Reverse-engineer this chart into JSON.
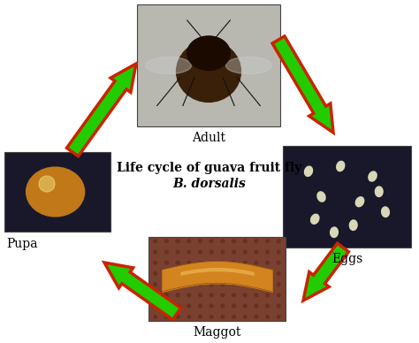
{
  "title_line1": "Life cycle of guava fruit fly",
  "title_line2": "B. dorsalis",
  "background_color": "#ffffff",
  "labels": {
    "adult": "Adult",
    "eggs": "Eggs",
    "maggot": "Maggot",
    "pupa": "Pupa"
  },
  "photo_colors": {
    "adult": "#b8b8b0",
    "eggs": "#18182a",
    "maggot": "#7a4030",
    "pupa": "#18182a"
  },
  "arrow_fill": "#22cc00",
  "arrow_edge": "#cc2200",
  "title_fontsize": 10,
  "label_fontsize": 10,
  "figsize": [
    4.74,
    3.88
  ],
  "dpi": 100
}
